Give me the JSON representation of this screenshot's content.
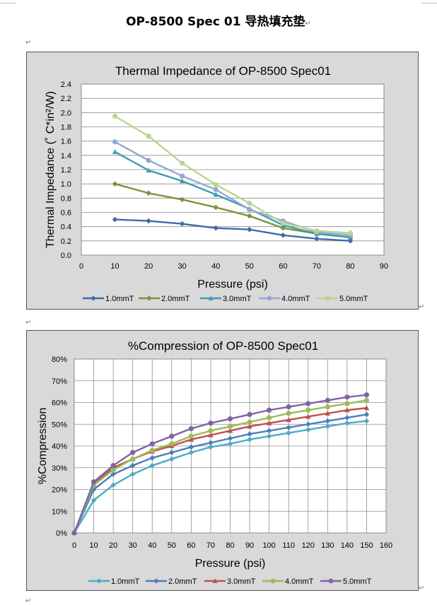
{
  "document": {
    "title": "OP-8500 Spec 01 导热填充垫",
    "paragraph_mark": "↵"
  },
  "chart_data": [
    {
      "type": "line",
      "title": "Thermal Impedance of OP-8500 Spec01",
      "xlabel": "Pressure (psi)",
      "ylabel": "Thermal Impedance (˚ C*in²/W)",
      "xlim": [
        0,
        90
      ],
      "ylim": [
        0,
        2.4
      ],
      "xticks": [
        0,
        10,
        20,
        30,
        40,
        50,
        60,
        70,
        80,
        90
      ],
      "yticks": [
        "0.0",
        "0.2",
        "0.4",
        "0.6",
        "0.8",
        "1.0",
        "1.2",
        "1.4",
        "1.6",
        "1.8",
        "2.0",
        "2.2",
        "2.4"
      ],
      "grid": true,
      "legend_position": "bottom",
      "x": [
        10,
        20,
        30,
        40,
        50,
        60,
        70,
        80
      ],
      "series": [
        {
          "name": "1.0mmT",
          "color": "#3f6aa8",
          "marker": "diamond",
          "values": [
            0.5,
            0.48,
            0.44,
            0.38,
            0.36,
            0.28,
            0.23,
            0.2
          ]
        },
        {
          "name": "2.0mmT",
          "color": "#77963a",
          "marker": "diamond",
          "values": [
            1.0,
            0.87,
            0.78,
            0.67,
            0.55,
            0.38,
            0.3,
            0.25
          ]
        },
        {
          "name": "3.0mmT",
          "color": "#3e9cb0",
          "marker": "triangle",
          "values": [
            1.45,
            1.19,
            1.04,
            0.85,
            0.65,
            0.42,
            0.3,
            0.25
          ]
        },
        {
          "name": "4.0mmT",
          "color": "#91a9d4",
          "marker": "circle",
          "values": [
            1.59,
            1.33,
            1.11,
            0.92,
            0.64,
            0.48,
            0.32,
            0.28
          ]
        },
        {
          "name": "5.0mmT",
          "color": "#b9d591",
          "marker": "circle",
          "values": [
            1.95,
            1.67,
            1.29,
            0.99,
            0.73,
            0.45,
            0.34,
            0.31
          ]
        }
      ]
    },
    {
      "type": "line",
      "title": "%Compression of OP-8500 Spec01",
      "xlabel": "Pressure (psi)",
      "ylabel": "%Compression",
      "xlim": [
        0,
        160
      ],
      "ylim": [
        0,
        80
      ],
      "xticks": [
        0,
        10,
        20,
        30,
        40,
        50,
        60,
        70,
        80,
        90,
        100,
        110,
        120,
        130,
        140,
        150,
        160
      ],
      "yticks": [
        "0%",
        "10%",
        "20%",
        "30%",
        "40%",
        "50%",
        "60%",
        "70%",
        "80%"
      ],
      "grid": true,
      "legend_position": "bottom",
      "x": [
        0,
        10,
        20,
        30,
        40,
        50,
        60,
        70,
        80,
        90,
        100,
        110,
        120,
        130,
        140,
        150
      ],
      "series": [
        {
          "name": "1.0mmT",
          "color": "#4bacc6",
          "marker": "diamond",
          "values": [
            0,
            15,
            22,
            27,
            31,
            34,
            37,
            39.5,
            41,
            43,
            44.5,
            46,
            47.5,
            49,
            50.5,
            51.5
          ]
        },
        {
          "name": "2.0mmT",
          "color": "#4a7ebb",
          "marker": "diamond",
          "values": [
            0,
            20,
            27,
            31,
            34.5,
            37,
            39.5,
            41.5,
            43.5,
            45.5,
            47,
            48.5,
            50,
            51.5,
            53,
            54.5
          ]
        },
        {
          "name": "3.0mmT",
          "color": "#c0504d",
          "marker": "triangle",
          "values": [
            0,
            22.5,
            30,
            34,
            37.5,
            40,
            43,
            45,
            47,
            49,
            50.5,
            52,
            53.5,
            55,
            56.5,
            57.5
          ]
        },
        {
          "name": "4.0mmT",
          "color": "#9bbb59",
          "marker": "circle",
          "values": [
            0,
            22,
            29,
            34,
            38,
            41,
            44.5,
            47,
            49,
            51,
            53,
            55,
            56.5,
            58,
            59.5,
            61
          ]
        },
        {
          "name": "5.0mmT",
          "color": "#8064a2",
          "marker": "circle",
          "values": [
            0,
            23.5,
            31,
            37,
            41,
            44.5,
            48,
            50.5,
            52.5,
            54.5,
            56.5,
            58,
            59.5,
            61,
            62.5,
            63.5
          ]
        }
      ]
    }
  ]
}
